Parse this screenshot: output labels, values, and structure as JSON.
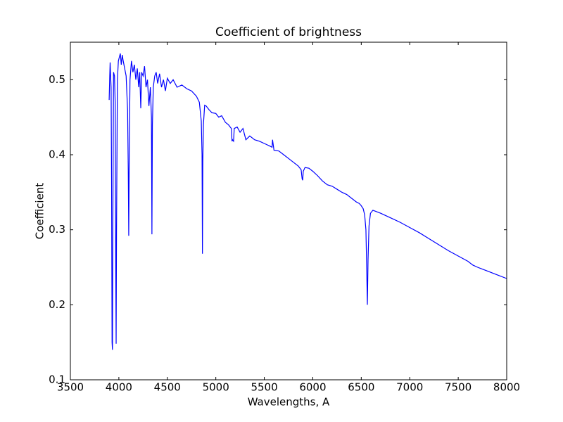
{
  "chart_data": {
    "type": "line",
    "title": "Coefficient of brightness",
    "x_label": "Wavelengths, A",
    "y_label": "Coefficient",
    "color": "#0000ff",
    "xlim": [
      3500,
      8000
    ],
    "ylim": [
      0.1,
      0.55
    ],
    "xticks": [
      3500,
      4000,
      4500,
      5000,
      5500,
      6000,
      6500,
      7000,
      7500,
      8000
    ],
    "yticks": [
      0.1,
      0.2,
      0.3,
      0.4,
      0.5
    ],
    "x": [
      3900,
      3905,
      3910,
      3915,
      3920,
      3925,
      3930,
      3934,
      3938,
      3945,
      3955,
      3962,
      3968,
      3972,
      3976,
      3985,
      3995,
      4005,
      4015,
      4025,
      4035,
      4045,
      4060,
      4075,
      4090,
      4097,
      4102,
      4107,
      4115,
      4130,
      4145,
      4160,
      4175,
      4190,
      4205,
      4215,
      4226,
      4235,
      4250,
      4265,
      4280,
      4295,
      4310,
      4325,
      4336,
      4341,
      4346,
      4355,
      4370,
      4385,
      4400,
      4420,
      4440,
      4460,
      4480,
      4500,
      4530,
      4560,
      4600,
      4650,
      4700,
      4750,
      4800,
      4830,
      4850,
      4858,
      4862,
      4866,
      4872,
      4885,
      4900,
      4930,
      4960,
      5000,
      5030,
      5060,
      5100,
      5130,
      5160,
      5167,
      5172,
      5183,
      5190,
      5220,
      5250,
      5280,
      5310,
      5350,
      5400,
      5450,
      5500,
      5550,
      5580,
      5585,
      5600,
      5650,
      5700,
      5750,
      5800,
      5850,
      5880,
      5890,
      5896,
      5902,
      5920,
      5960,
      6000,
      6050,
      6100,
      6150,
      6200,
      6250,
      6300,
      6350,
      6400,
      6450,
      6480,
      6500,
      6520,
      6535,
      6548,
      6556,
      6563,
      6570,
      6580,
      6595,
      6620,
      6700,
      6800,
      6900,
      7000,
      7100,
      7200,
      7300,
      7400,
      7500,
      7600,
      7650,
      7700,
      7800,
      7900,
      8000
    ],
    "values": [
      0.473,
      0.5,
      0.523,
      0.505,
      0.49,
      0.36,
      0.15,
      0.14,
      0.3,
      0.51,
      0.505,
      0.47,
      0.25,
      0.148,
      0.3,
      0.5,
      0.525,
      0.53,
      0.535,
      0.52,
      0.533,
      0.525,
      0.515,
      0.505,
      0.46,
      0.38,
      0.292,
      0.4,
      0.5,
      0.525,
      0.51,
      0.52,
      0.5,
      0.515,
      0.49,
      0.51,
      0.462,
      0.51,
      0.505,
      0.518,
      0.49,
      0.5,
      0.465,
      0.49,
      0.45,
      0.294,
      0.44,
      0.49,
      0.505,
      0.51,
      0.495,
      0.508,
      0.49,
      0.5,
      0.485,
      0.502,
      0.495,
      0.5,
      0.49,
      0.493,
      0.488,
      0.485,
      0.478,
      0.47,
      0.445,
      0.4,
      0.268,
      0.39,
      0.44,
      0.466,
      0.465,
      0.46,
      0.456,
      0.455,
      0.45,
      0.452,
      0.443,
      0.44,
      0.435,
      0.418,
      0.42,
      0.418,
      0.435,
      0.437,
      0.43,
      0.435,
      0.42,
      0.425,
      0.42,
      0.418,
      0.415,
      0.412,
      0.41,
      0.42,
      0.406,
      0.405,
      0.4,
      0.395,
      0.39,
      0.385,
      0.38,
      0.368,
      0.366,
      0.378,
      0.383,
      0.382,
      0.378,
      0.372,
      0.365,
      0.36,
      0.358,
      0.354,
      0.35,
      0.347,
      0.342,
      0.337,
      0.335,
      0.332,
      0.328,
      0.32,
      0.3,
      0.25,
      0.2,
      0.26,
      0.305,
      0.322,
      0.326,
      0.322,
      0.316,
      0.31,
      0.303,
      0.296,
      0.288,
      0.28,
      0.272,
      0.265,
      0.258,
      0.253,
      0.25,
      0.245,
      0.24,
      0.235
    ]
  }
}
